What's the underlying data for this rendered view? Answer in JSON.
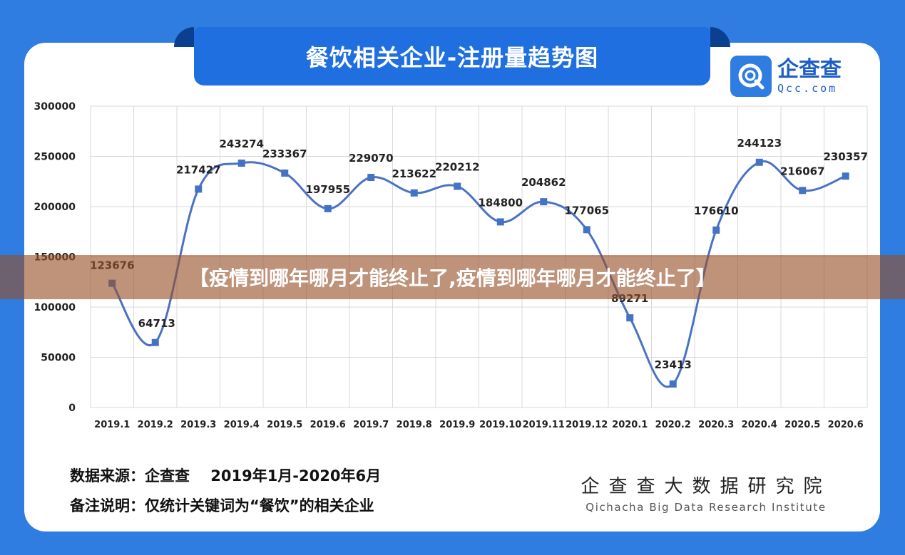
{
  "header": {
    "title": "餐饮相关企业-注册量趋势图"
  },
  "logo": {
    "name_cn": "企查查",
    "name_en": "Qcc.com"
  },
  "banner": {
    "text": "【疫情到哪年哪月才能终止了,疫情到哪年哪月才能终止了】"
  },
  "footer": {
    "source_label": "数据来源：",
    "source_value": "企查查    2019年1月-2020年6月",
    "note_label": "备注说明：",
    "note_value": "仅统计关键词为“餐饮”的相关企业",
    "institute_cn": "企查查大数据研究院",
    "institute_en": "Qichacha Big Data Research Institute"
  },
  "colors": {
    "background": "#2f7de1",
    "line": "#4a72c4",
    "marker": "#4472c4"
  },
  "chart_data": {
    "type": "line",
    "categories": [
      "2019.1",
      "2019.2",
      "2019.3",
      "2019.4",
      "2019.5",
      "2019.6",
      "2019.7",
      "2019.8",
      "2019.9",
      "2019.10",
      "2019.11",
      "2019.12",
      "2020.1",
      "2020.2",
      "2020.3",
      "2020.4",
      "2020.5",
      "2020.6"
    ],
    "values": [
      123676,
      64713,
      217427,
      243274,
      233367,
      197955,
      229070,
      213622,
      220212,
      184800,
      204862,
      177065,
      89271,
      23413,
      176610,
      244123,
      216067,
      230357
    ],
    "data_labels": [
      "123676",
      "64713",
      "217427",
      "243274",
      "233367",
      "197955",
      "229070",
      "213622",
      "220212",
      "184800",
      "204862",
      "177065",
      "89271",
      "23413",
      "176610",
      "244123",
      "216067",
      "230357"
    ],
    "ylim": [
      0,
      300000
    ],
    "yticks": [
      "0",
      "50000",
      "100000",
      "150000",
      "200000",
      "250000",
      "300000"
    ],
    "grid": true,
    "smooth": true
  }
}
